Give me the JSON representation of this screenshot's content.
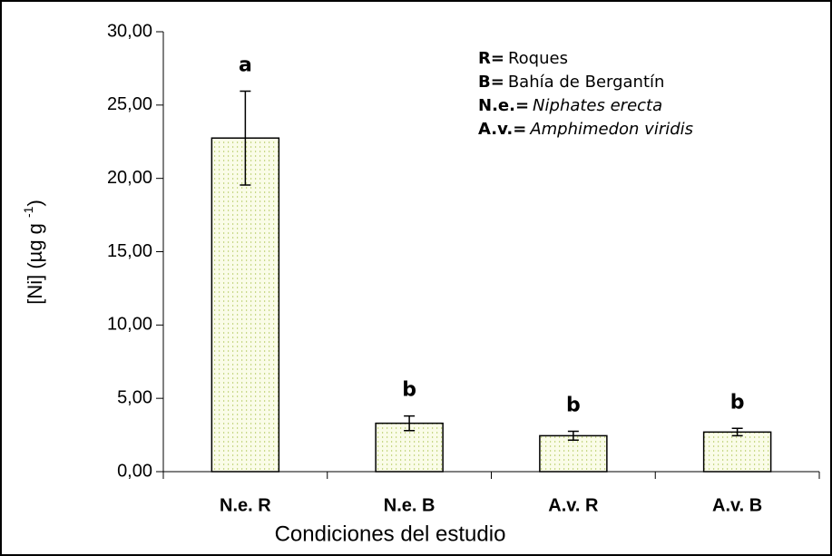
{
  "chart_data": {
    "type": "bar",
    "categories": [
      "N.e. R",
      "N.e. B",
      "A.v. R",
      "A.v. B"
    ],
    "values": [
      22.75,
      3.3,
      2.45,
      2.7
    ],
    "errors": [
      3.2,
      0.5,
      0.3,
      0.25
    ],
    "letters": [
      "a",
      "b",
      "b",
      "b"
    ],
    "color": "#c9d98a",
    "xlabel": "Condiciones del estudio",
    "ylabel_parts": [
      "[Ni] (µg g ",
      "-1",
      ")"
    ],
    "ylim": [
      0,
      30
    ],
    "yticks": [
      {
        "value": 0,
        "label": "0,00"
      },
      {
        "value": 5,
        "label": "5,00"
      },
      {
        "value": 10,
        "label": "10,00"
      },
      {
        "value": 15,
        "label": "15,00"
      },
      {
        "value": 20,
        "label": "20,00"
      },
      {
        "value": 25,
        "label": "25,00"
      },
      {
        "value": 30,
        "label": "30,00"
      }
    ],
    "notes": [
      {
        "key": "R",
        "sep": "=",
        "text": "Roques",
        "italic": false
      },
      {
        "key": "B",
        "sep": "=",
        "text": "Bahía de Bergantín",
        "italic": false
      },
      {
        "key": "N.e.",
        "sep": "=",
        "text": "Niphates erecta",
        "italic": true
      },
      {
        "key": "A.v.",
        "sep": "=",
        "text": "Amphimedon viridis",
        "italic": true
      }
    ]
  }
}
